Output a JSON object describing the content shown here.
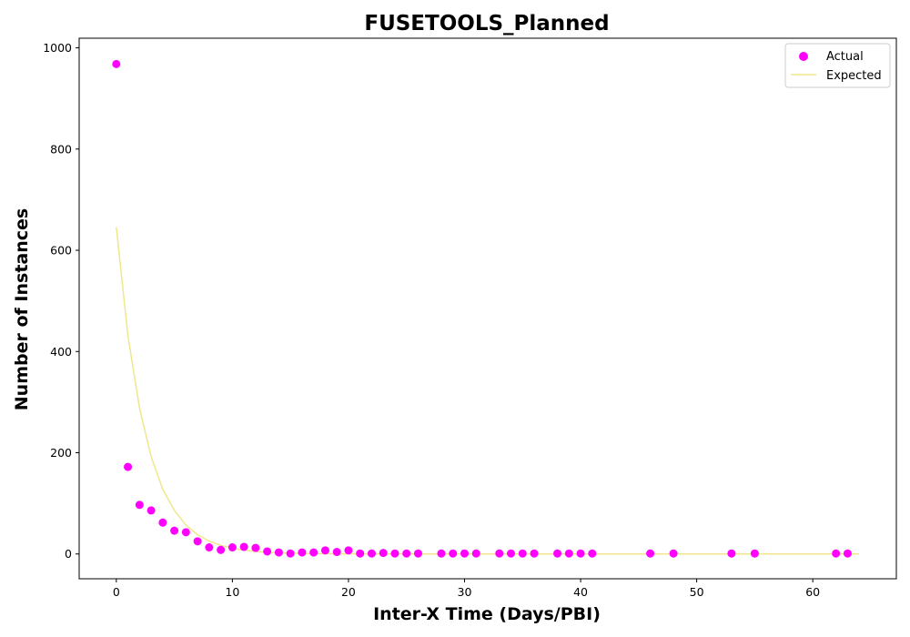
{
  "chart_data": {
    "type": "scatter",
    "title": "FUSETOOLS_Planned",
    "xlabel": "Inter-X Time (Days/PBI)",
    "ylabel": "Number of Instances",
    "xlim": [
      -3.2,
      67.2
    ],
    "ylim": [
      -49,
      1019
    ],
    "x_ticks": [
      0,
      10,
      20,
      30,
      40,
      50,
      60
    ],
    "y_ticks": [
      0,
      200,
      400,
      600,
      800,
      1000
    ],
    "grid": false,
    "legend_position": "top-right",
    "series": [
      {
        "name": "Actual",
        "kind": "scatter",
        "color": "#ff00ff",
        "x": [
          0,
          1,
          2,
          3,
          4,
          5,
          6,
          7,
          8,
          9,
          10,
          11,
          12,
          13,
          14,
          15,
          16,
          17,
          18,
          19,
          20,
          21,
          22,
          23,
          24,
          25,
          26,
          28,
          29,
          30,
          31,
          33,
          34,
          35,
          36,
          38,
          39,
          40,
          41,
          46,
          48,
          53,
          55,
          62,
          63
        ],
        "y": [
          968,
          172,
          97,
          86,
          62,
          46,
          43,
          25,
          13,
          8,
          13,
          14,
          12,
          5,
          3,
          1,
          3,
          3,
          7,
          4,
          7,
          1,
          1,
          2,
          1,
          1,
          1,
          1,
          1,
          1,
          1,
          1,
          1,
          1,
          1,
          1,
          1,
          1,
          1,
          1,
          1,
          1,
          1,
          1,
          1
        ]
      },
      {
        "name": "Expected",
        "kind": "line",
        "color": "#f0e68c",
        "x": [
          0,
          1,
          2,
          3,
          4,
          5,
          6,
          7,
          8,
          9,
          10,
          11,
          12,
          13,
          14,
          15,
          16,
          17,
          18,
          19,
          20,
          21,
          22,
          23,
          24,
          25,
          26,
          27,
          28,
          29,
          30,
          31,
          32,
          33,
          34,
          35,
          36,
          37,
          38,
          39,
          40,
          41,
          42,
          43,
          44,
          45,
          46,
          47,
          48,
          49,
          50,
          51,
          52,
          53,
          54,
          55,
          56,
          57,
          58,
          59,
          60,
          61,
          62,
          63,
          64
        ],
        "y": [
          646,
          431,
          288,
          192,
          128,
          86,
          57,
          38,
          25.4,
          17,
          11.3,
          7.6,
          5,
          3.4,
          2.2,
          1.5,
          1,
          0.7,
          0.45,
          0.3,
          0.2,
          0.13,
          0.09,
          0.06,
          0.04,
          0.03,
          0.02,
          0.01,
          0.01,
          0.01,
          0,
          0,
          0,
          0,
          0,
          0,
          0,
          0,
          0,
          0,
          0,
          0,
          0,
          0,
          0,
          0,
          0,
          0,
          0,
          0,
          0,
          0,
          0,
          0,
          0,
          0,
          0,
          0,
          0,
          0,
          0,
          0,
          0,
          0,
          0
        ]
      }
    ]
  }
}
